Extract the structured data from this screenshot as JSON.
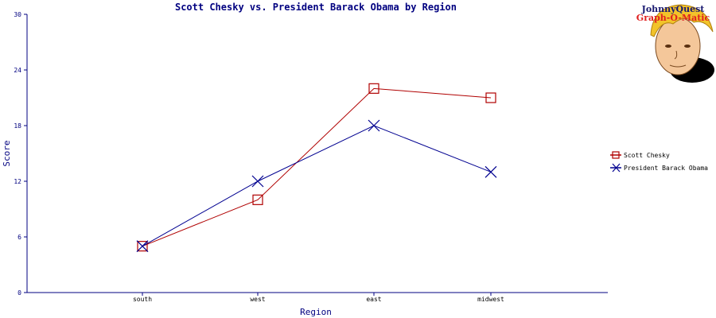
{
  "colors": {
    "navy": "#000080",
    "series1": "#b00000",
    "series2": "#000090",
    "axis": "#000080"
  },
  "logo": {
    "line1": "JohnnyQuest",
    "line2": "Graph-O-Matic",
    "icon": "cartoon-boy-face"
  },
  "chart_data": {
    "type": "line",
    "title": "Scott Chesky vs. President Barack Obama by Region",
    "xlabel": "Region",
    "ylabel": "Score",
    "categories": [
      "south",
      "west",
      "east",
      "midwest"
    ],
    "ylim": [
      0,
      30
    ],
    "yticks": [
      "0",
      "6",
      "12",
      "18",
      "24",
      "30"
    ],
    "grid": false,
    "legend_position": "right",
    "series": [
      {
        "name": "Scott Chesky",
        "marker": "square",
        "values": [
          5,
          10,
          22,
          21
        ]
      },
      {
        "name": "President Barack Obama",
        "marker": "x",
        "values": [
          5,
          12,
          18,
          13
        ]
      }
    ]
  }
}
